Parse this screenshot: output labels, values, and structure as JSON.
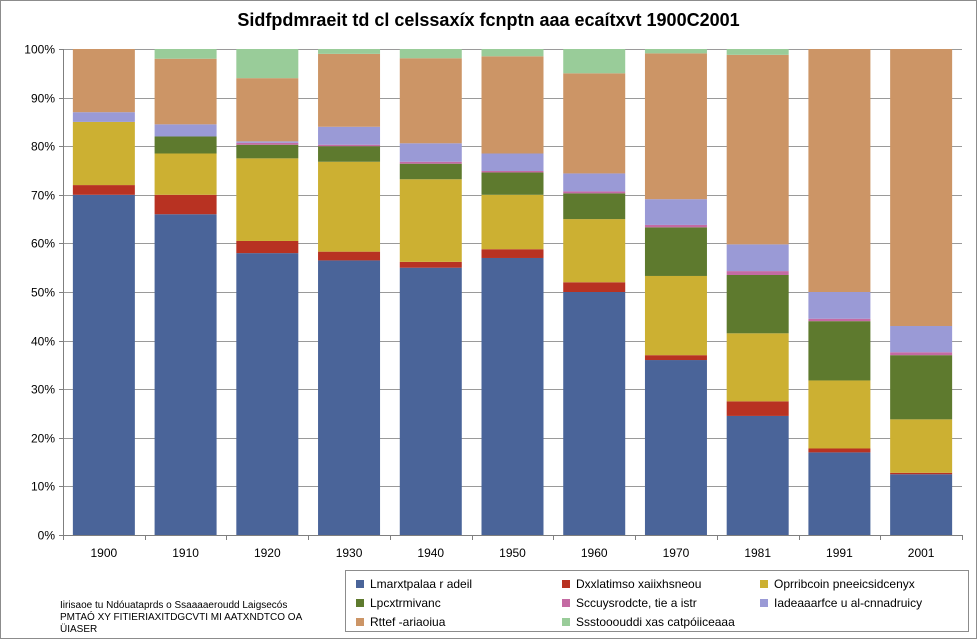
{
  "chart_data": {
    "type": "bar",
    "stacked": true,
    "normalized": true,
    "title": "Sidfpdmraeit td cl celssaxíx fcnptn aaa ecaítxvt 1900C2001",
    "xlabel": "",
    "ylabel": "",
    "ylim": [
      0,
      100
    ],
    "yticks": [
      "0%",
      "10%",
      "20%",
      "30%",
      "40%",
      "50%",
      "60%",
      "70%",
      "80%",
      "90%",
      "100%"
    ],
    "categories": [
      "1900",
      "1910",
      "1920",
      "1930",
      "1940",
      "1950",
      "1960",
      "1970",
      "1981",
      "1991",
      "2001"
    ],
    "grid": true,
    "legend_position": "bottom-right",
    "series": [
      {
        "name": "Lmarxtpalaa r adeil",
        "color": "#4a6499",
        "values": [
          70,
          66,
          58,
          56.5,
          55,
          57,
          50,
          36,
          24.5,
          17,
          12.5
        ]
      },
      {
        "name": "Dxxlatimso xaiixhsneou",
        "color": "#b83222",
        "values": [
          2,
          4,
          2.5,
          1.8,
          1.2,
          1.8,
          2,
          1,
          3,
          0.8,
          0.3
        ]
      },
      {
        "name": "Oprribcoin pneeicsidcenyx",
        "color": "#ccb032",
        "values": [
          13,
          8.5,
          17,
          18.5,
          17,
          11.2,
          13,
          16.3,
          14,
          14,
          11
        ]
      },
      {
        "name": "Lpcxtrmivanc",
        "color": "#5e7a2e",
        "values": [
          0,
          3.5,
          2.8,
          3.2,
          3.2,
          4.6,
          5.3,
          10,
          12,
          12.2,
          13.2
        ]
      },
      {
        "name": "Sccuysrodcte, tie a istr",
        "color": "#c46aa3",
        "values": [
          0,
          0,
          0.4,
          0.3,
          0.4,
          0.3,
          0.4,
          0.5,
          0.8,
          0.5,
          0.6
        ]
      },
      {
        "name": "Iadeaaarfce u al-cnnadruicy",
        "color": "#9a9ad6",
        "values": [
          2,
          2.5,
          0.3,
          3.7,
          3.8,
          3.6,
          3.7,
          5.3,
          5.5,
          5.5,
          5.4
        ]
      },
      {
        "name": "Rttef -ariaoiua",
        "color": "#cc9566",
        "values": [
          13,
          13.5,
          13,
          15,
          17.5,
          20,
          20.6,
          30,
          39,
          50,
          57
        ]
      },
      {
        "name": "Ssstooouddi xas catpóiiceaaa",
        "color": "#99cc99",
        "values": [
          0,
          2,
          6,
          1,
          1.9,
          1.5,
          5,
          0.9,
          1.2,
          0,
          0
        ]
      }
    ]
  },
  "source_note": [
    "Iirisaoe tu Ndóuataprds o Ssaaaaeroudd Laigsecós",
    "PMTAÓ XY FITIERIAXITDGCVTI MI AATXNDTCO OA",
    "ÜIASER"
  ]
}
